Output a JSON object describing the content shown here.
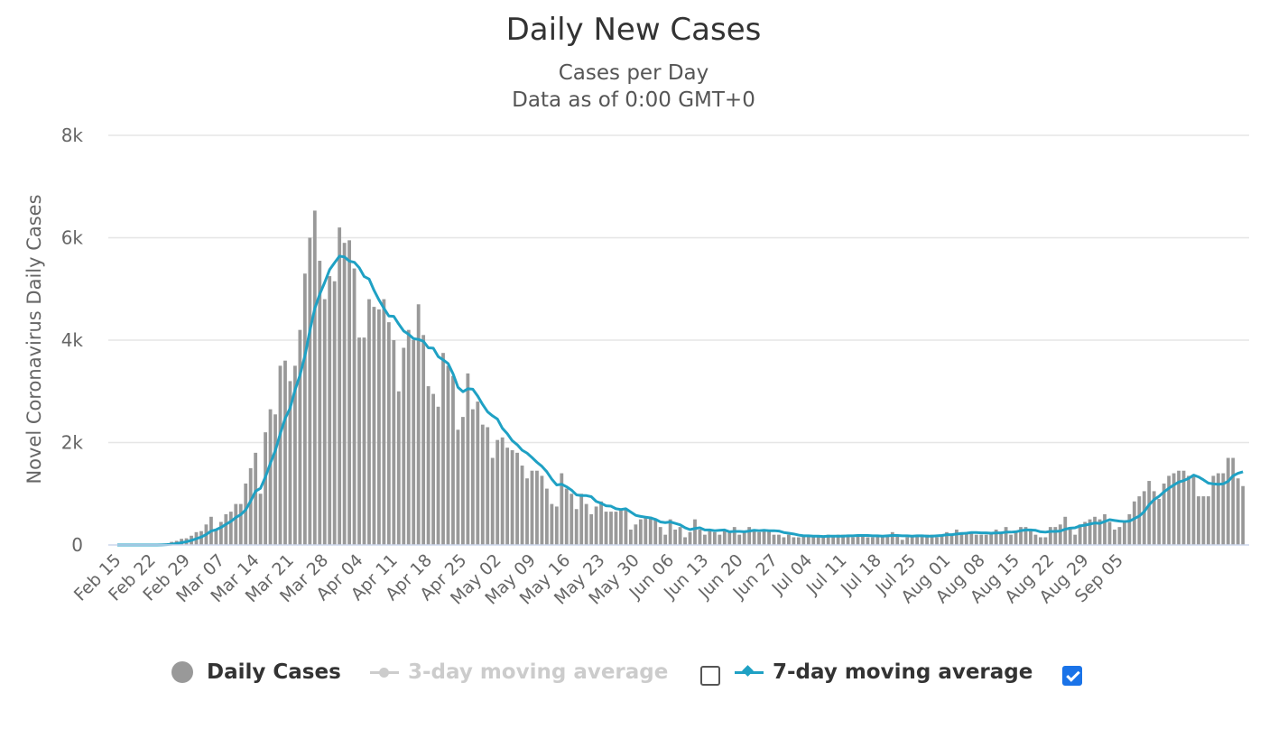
{
  "chart_data": {
    "type": "bar",
    "title": "Daily New Cases",
    "subtitle": [
      "Cases per Day",
      "Data as of 0:00 GMT+0"
    ],
    "ylabel": "Novel Coronavirus Daily Cases",
    "xlabel": "",
    "ylim": [
      0,
      8000
    ],
    "y_ticks": [
      0,
      2000,
      4000,
      6000,
      8000
    ],
    "y_tick_labels": [
      "0",
      "2k",
      "4k",
      "6k",
      "8k"
    ],
    "x_start": "2020-02-15",
    "x_tick_labels": [
      "Feb 15",
      "Feb 22",
      "Feb 29",
      "Mar 07",
      "Mar 14",
      "Mar 21",
      "Mar 28",
      "Apr 04",
      "Apr 11",
      "Apr 18",
      "Apr 25",
      "May 02",
      "May 09",
      "May 16",
      "May 23",
      "May 30",
      "Jun 06",
      "Jun 13",
      "Jun 20",
      "Jun 27",
      "Jul 04",
      "Jul 11",
      "Jul 18",
      "Jul 25",
      "Aug 01",
      "Aug 08",
      "Aug 15",
      "Aug 22",
      "Aug 29",
      "Sep 05"
    ],
    "grid": true,
    "legend_position": "bottom",
    "colors": {
      "bars": "#999999",
      "ma7": "#1fa1c4",
      "ma3": "#cccccc",
      "grid": "#e6e6e6"
    },
    "series": [
      {
        "name": "Daily Cases",
        "type": "bar",
        "values": [
          0,
          0,
          0,
          0,
          0,
          0,
          0,
          0,
          0,
          20,
          30,
          60,
          80,
          120,
          130,
          180,
          250,
          270,
          400,
          550,
          300,
          450,
          600,
          650,
          800,
          800,
          1200,
          1500,
          1800,
          1000,
          2200,
          2650,
          2550,
          3500,
          3600,
          3200,
          3500,
          4200,
          5300,
          6000,
          6530,
          5550,
          4800,
          5250,
          5150,
          6200,
          5900,
          5950,
          5400,
          4050,
          4050,
          4800,
          4650,
          4600,
          4800,
          4350,
          4000,
          3000,
          3850,
          4200,
          4000,
          4700,
          4100,
          3100,
          2950,
          2700,
          3750,
          3500,
          3300,
          2250,
          2500,
          3350,
          2650,
          2800,
          2350,
          2300,
          1700,
          2050,
          2100,
          1900,
          1850,
          1800,
          1550,
          1300,
          1450,
          1450,
          1350,
          1100,
          800,
          750,
          1400,
          1100,
          1000,
          700,
          1000,
          800,
          600,
          750,
          850,
          650,
          650,
          650,
          700,
          700,
          300,
          400,
          500,
          550,
          550,
          500,
          350,
          200,
          500,
          300,
          350,
          150,
          250,
          500,
          300,
          200,
          300,
          250,
          200,
          300,
          250,
          350,
          200,
          250,
          350,
          300,
          250,
          300,
          300,
          200,
          200,
          150,
          200,
          150,
          150,
          200,
          200,
          150,
          150,
          150,
          200,
          150,
          200,
          200,
          200,
          150,
          200,
          200,
          150,
          150,
          200,
          150,
          200,
          250,
          200,
          100,
          150,
          150,
          200,
          200,
          200,
          200,
          150,
          200,
          250,
          200,
          300,
          250,
          250,
          250,
          200,
          200,
          200,
          250,
          300,
          250,
          350,
          200,
          250,
          350,
          350,
          300,
          200,
          150,
          150,
          350,
          350,
          400,
          550,
          350,
          200,
          400,
          450,
          500,
          550,
          500,
          600,
          450,
          300,
          350,
          450,
          600,
          850,
          950,
          1050,
          1250,
          1050,
          900,
          1200,
          1350,
          1400,
          1450,
          1450,
          1350,
          1350,
          950,
          950,
          950,
          1350,
          1400,
          1400,
          1700,
          1700,
          1300,
          1150
        ]
      },
      {
        "name": "3-day moving average",
        "type": "line",
        "visible": false
      },
      {
        "name": "7-day moving average",
        "type": "line",
        "visible": true
      }
    ]
  },
  "legend": {
    "daily_cases_label": "Daily Cases",
    "ma3_label": "3-day moving average",
    "ma7_label": "7-day moving average",
    "ma3_checked": false,
    "ma7_checked": true
  }
}
